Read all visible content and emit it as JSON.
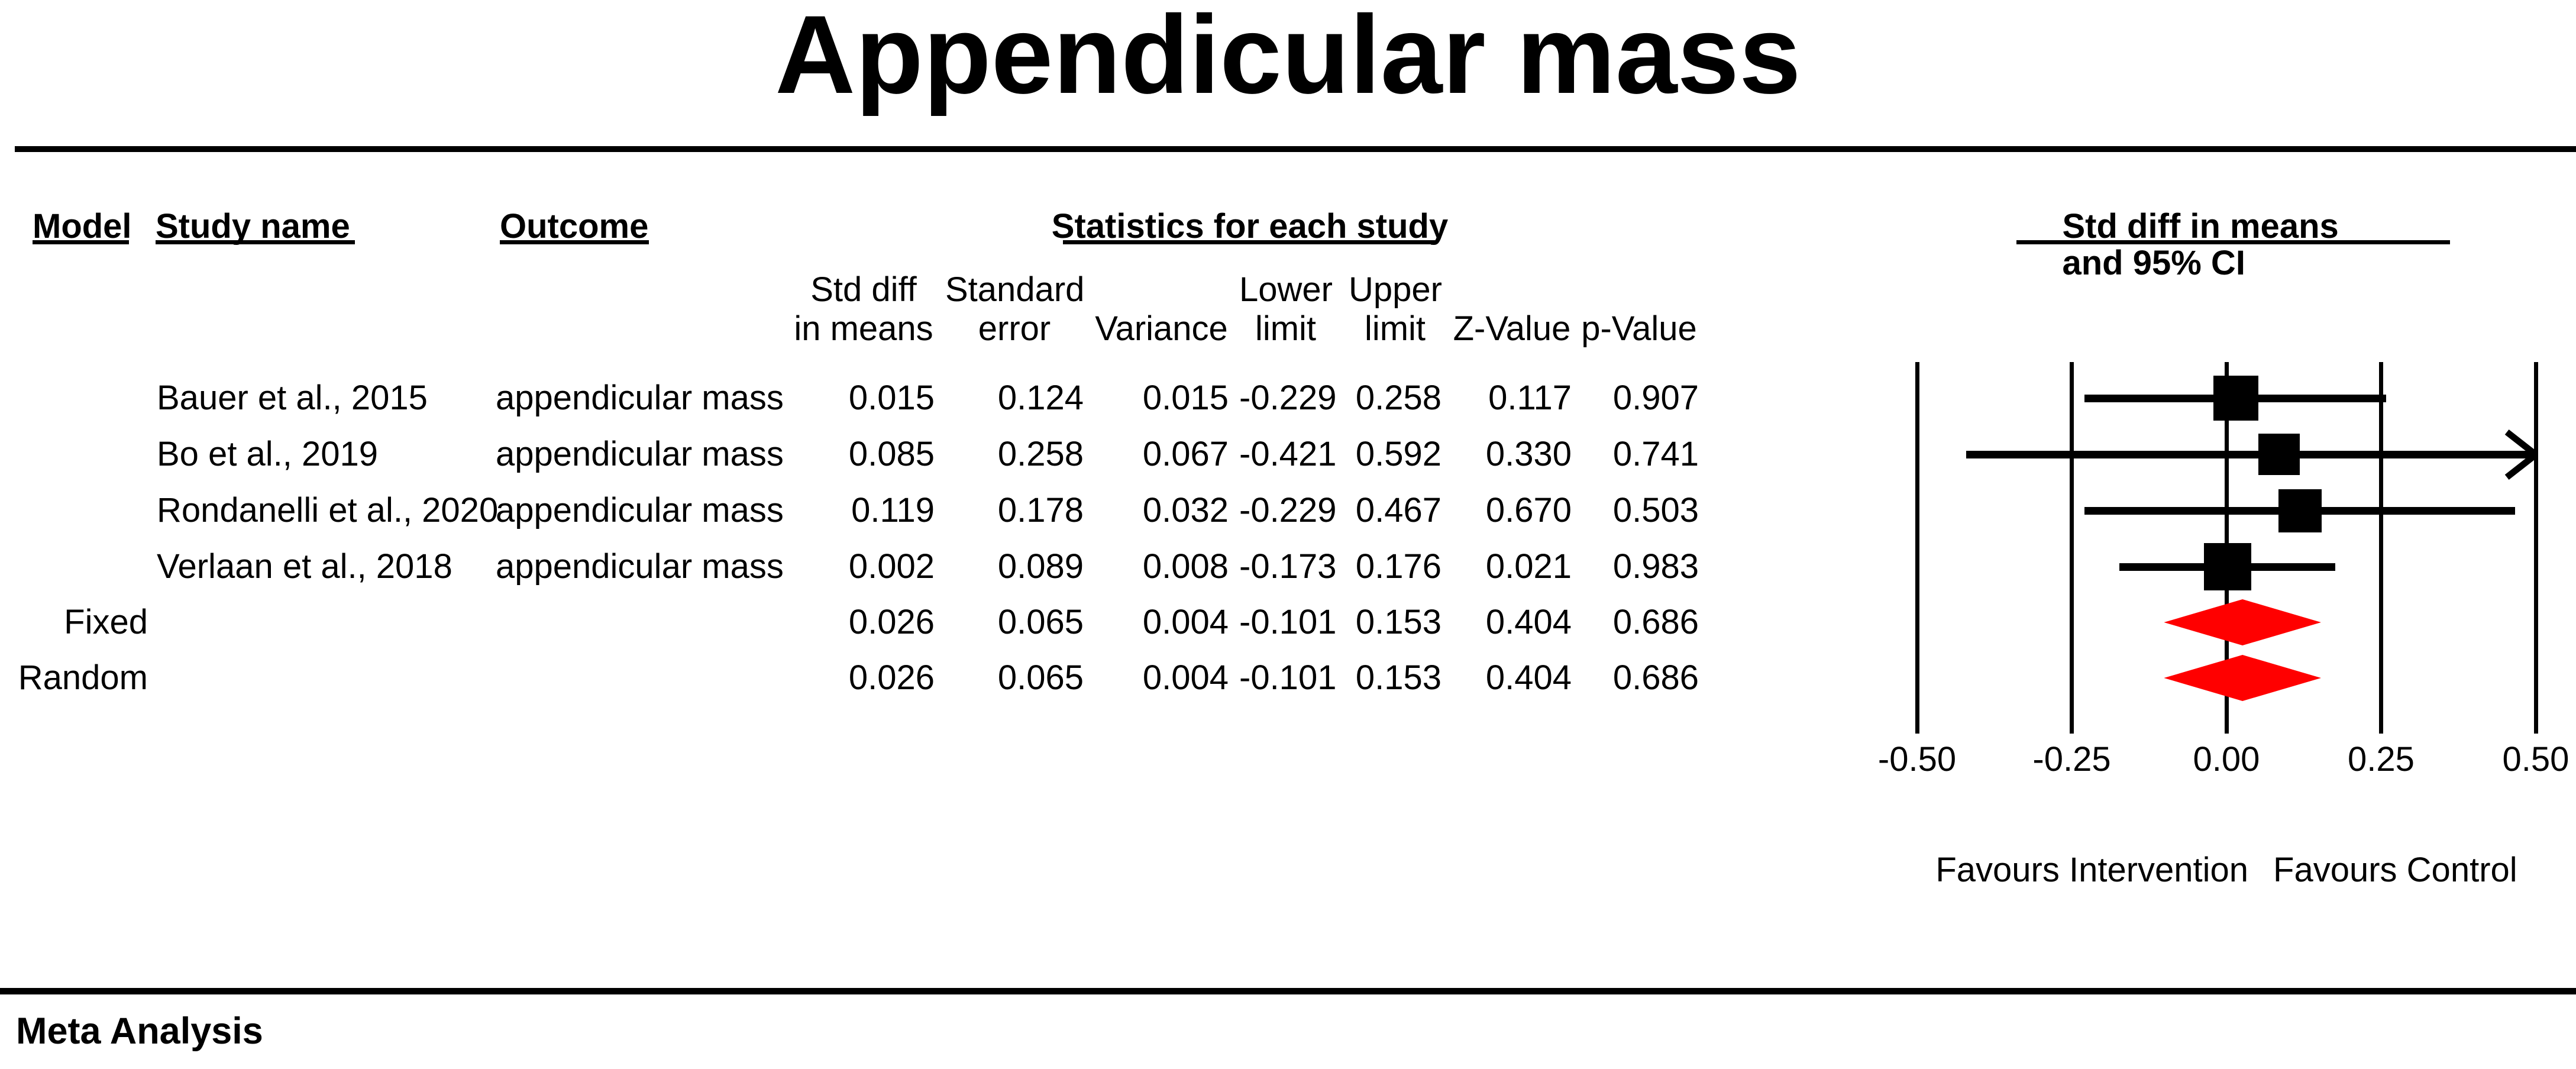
{
  "title": "Appendicular mass",
  "footer": {
    "label": "Meta Analysis"
  },
  "table": {
    "col_model": "Model",
    "col_study": "Study name",
    "col_outcome": "Outcome",
    "stats_group": "Statistics for each study",
    "ci_group": "Std diff in means and 95% CI",
    "stat_cols": [
      {
        "line1": "Std diff",
        "line2": "in means"
      },
      {
        "line1": "Standard",
        "line2": "error"
      },
      {
        "line1": "",
        "line2": "Variance"
      },
      {
        "line1": "Lower",
        "line2": "limit"
      },
      {
        "line1": "Upper",
        "line2": "limit"
      },
      {
        "line1": "",
        "line2": "Z-Value"
      },
      {
        "line1": "",
        "line2": "p-Value"
      }
    ],
    "rows": [
      {
        "model": "",
        "study": "Bauer et al., 2015",
        "outcome": "appendicular mass",
        "stats": [
          "0.015",
          "0.124",
          "0.015",
          "-0.229",
          "0.258",
          "0.117",
          "0.907"
        ]
      },
      {
        "model": "",
        "study": "Bo et al., 2019",
        "outcome": "appendicular mass",
        "stats": [
          "0.085",
          "0.258",
          "0.067",
          "-0.421",
          "0.592",
          "0.330",
          "0.741"
        ]
      },
      {
        "model": "",
        "study": "Rondanelli et al., 2020",
        "outcome": "appendicular mass",
        "stats": [
          "0.119",
          "0.178",
          "0.032",
          "-0.229",
          "0.467",
          "0.670",
          "0.503"
        ]
      },
      {
        "model": "",
        "study": "Verlaan et al., 2018",
        "outcome": "appendicular mass",
        "stats": [
          "0.002",
          "0.089",
          "0.008",
          "-0.173",
          "0.176",
          "0.021",
          "0.983"
        ]
      },
      {
        "model": "Fixed",
        "study": "",
        "outcome": "",
        "stats": [
          "0.026",
          "0.065",
          "0.004",
          "-0.101",
          "0.153",
          "0.404",
          "0.686"
        ]
      },
      {
        "model": "Random",
        "study": "",
        "outcome": "",
        "stats": [
          "0.026",
          "0.065",
          "0.004",
          "-0.101",
          "0.153",
          "0.404",
          "0.686"
        ]
      }
    ]
  },
  "chart_data": {
    "type": "forest",
    "title": "Appendicular mass",
    "effect_measure": "Std diff in means and 95% CI",
    "xlim": [
      -0.5,
      0.5
    ],
    "x_tick_values": [
      -0.5,
      -0.25,
      0,
      0.25,
      0.5
    ],
    "x_ticks": [
      "-0.50",
      "-0.25",
      "0.00",
      "0.25",
      "0.50"
    ],
    "favours_left": "Favours Intervention",
    "favours_right": "Favours Control",
    "marker_color": "#000000",
    "pooled_color": "#ff0000",
    "studies": [
      {
        "name": "Bauer et al., 2015",
        "estimate": 0.015,
        "lower": -0.229,
        "upper": 0.258,
        "marker": "square",
        "size": 76
      },
      {
        "name": "Bo et al., 2019",
        "estimate": 0.085,
        "lower": -0.421,
        "upper": 0.592,
        "marker": "square",
        "size": 70
      },
      {
        "name": "Rondanelli et al., 2020",
        "estimate": 0.119,
        "lower": -0.229,
        "upper": 0.467,
        "marker": "square",
        "size": 73
      },
      {
        "name": "Verlaan et al., 2018",
        "estimate": 0.002,
        "lower": -0.173,
        "upper": 0.176,
        "marker": "square",
        "size": 80
      },
      {
        "name": "Fixed",
        "estimate": 0.026,
        "lower": -0.101,
        "upper": 0.153,
        "marker": "diamond",
        "size": 78
      },
      {
        "name": "Random",
        "estimate": 0.026,
        "lower": -0.101,
        "upper": 0.153,
        "marker": "diamond",
        "size": 78
      }
    ]
  }
}
